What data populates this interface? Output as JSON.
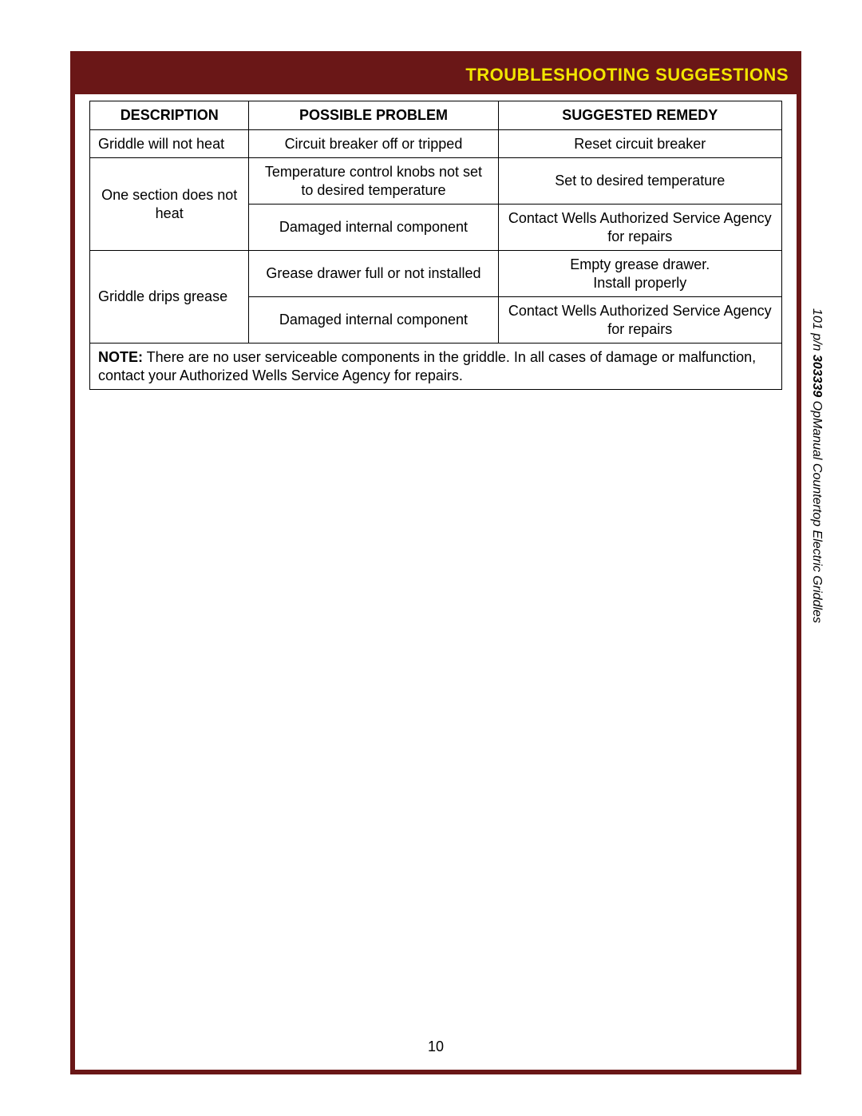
{
  "colors": {
    "frame": "#6a1717",
    "title": "#f2e600",
    "table_border": "#000000",
    "background": "#ffffff"
  },
  "header": {
    "title": "TROUBLESHOOTING SUGGESTIONS"
  },
  "table": {
    "columns": [
      "DESCRIPTION",
      "POSSIBLE PROBLEM",
      "SUGGESTED REMEDY"
    ],
    "col_widths_pct": [
      23,
      36,
      41
    ],
    "rows": [
      {
        "description": "Griddle will not heat",
        "problem": "Circuit breaker off or tripped",
        "remedy": "Reset circuit breaker",
        "desc_rowspan": 1
      },
      {
        "description": "One section does not heat",
        "problem": "Temperature control knobs not set to desired temperature",
        "remedy": "Set to desired temperature",
        "desc_rowspan": 2
      },
      {
        "problem": "Damaged internal component",
        "remedy": "Contact Wells Authorized Service Agency for repairs"
      },
      {
        "description": "Griddle drips grease",
        "problem": "Grease drawer full or not installed",
        "remedy": "Empty grease drawer.\nInstall properly",
        "desc_rowspan": 2
      },
      {
        "problem": "Damaged internal component",
        "remedy": "Contact Wells Authorized Service Agency for repairs"
      }
    ],
    "note_label": "NOTE:",
    "note_text": "  There are no user serviceable components in the  griddle.  In all cases of damage or malfunction, contact your Authorized Wells Service Agency for repairs."
  },
  "footer": {
    "page_number": "10",
    "side_prefix": "101  p/n ",
    "side_bold": "303339",
    "side_suffix": "  OpManual Countertop Electric Griddles"
  }
}
